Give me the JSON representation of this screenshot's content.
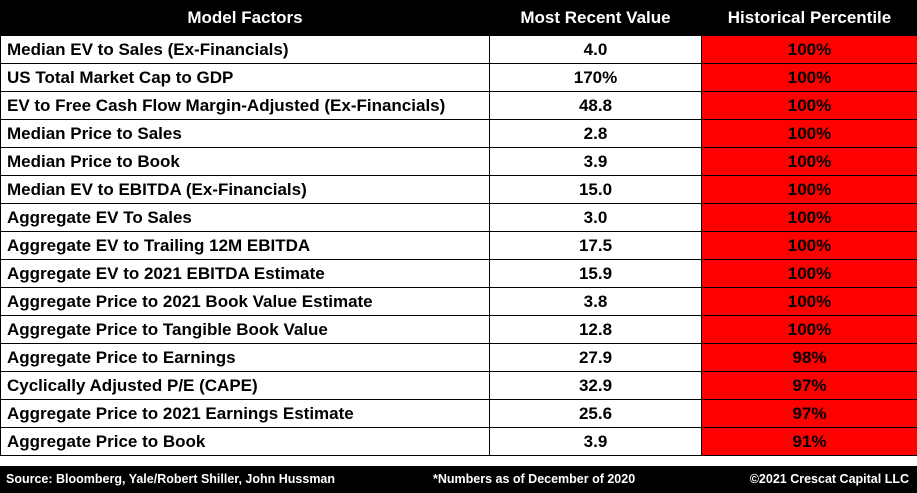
{
  "chart_data": {
    "type": "table",
    "columns": [
      "Model Factors",
      "Most Recent Value",
      "Historical Percentile"
    ],
    "rows": [
      {
        "factor": "Median EV to Sales (Ex-Financials)",
        "value": "4.0",
        "percentile": "100%"
      },
      {
        "factor": "US Total Market Cap to GDP",
        "value": "170%",
        "percentile": "100%"
      },
      {
        "factor": "EV to Free Cash Flow Margin-Adjusted (Ex-Financials)",
        "value": "48.8",
        "percentile": "100%"
      },
      {
        "factor": "Median Price to Sales",
        "value": "2.8",
        "percentile": "100%"
      },
      {
        "factor": "Median Price to Book",
        "value": "3.9",
        "percentile": "100%"
      },
      {
        "factor": "Median EV to EBITDA (Ex-Financials)",
        "value": "15.0",
        "percentile": "100%"
      },
      {
        "factor": "Aggregate EV To Sales",
        "value": "3.0",
        "percentile": "100%"
      },
      {
        "factor": "Aggregate EV to Trailing 12M EBITDA",
        "value": "17.5",
        "percentile": "100%"
      },
      {
        "factor": "Aggregate EV to 2021 EBITDA Estimate",
        "value": "15.9",
        "percentile": "100%"
      },
      {
        "factor": "Aggregate Price to 2021 Book Value Estimate",
        "value": "3.8",
        "percentile": "100%"
      },
      {
        "factor": "Aggregate Price to Tangible Book Value",
        "value": "12.8",
        "percentile": "100%"
      },
      {
        "factor": "Aggregate Price to Earnings",
        "value": "27.9",
        "percentile": "98%"
      },
      {
        "factor": "Cyclically Adjusted P/E (CAPE)",
        "value": "32.9",
        "percentile": "97%"
      },
      {
        "factor": "Aggregate Price to 2021 Earnings Estimate",
        "value": "25.6",
        "percentile": "97%"
      },
      {
        "factor": "Aggregate Price to Book",
        "value": "3.9",
        "percentile": "91%"
      }
    ],
    "highlight_color": "#ff0000",
    "header_color": "#000000"
  },
  "footer": {
    "source": "Source: Bloomberg, Yale/Robert Shiller, John Hussman",
    "note": "*Numbers as of December of 2020",
    "copyright": "©2021 Crescat Capital LLC"
  }
}
